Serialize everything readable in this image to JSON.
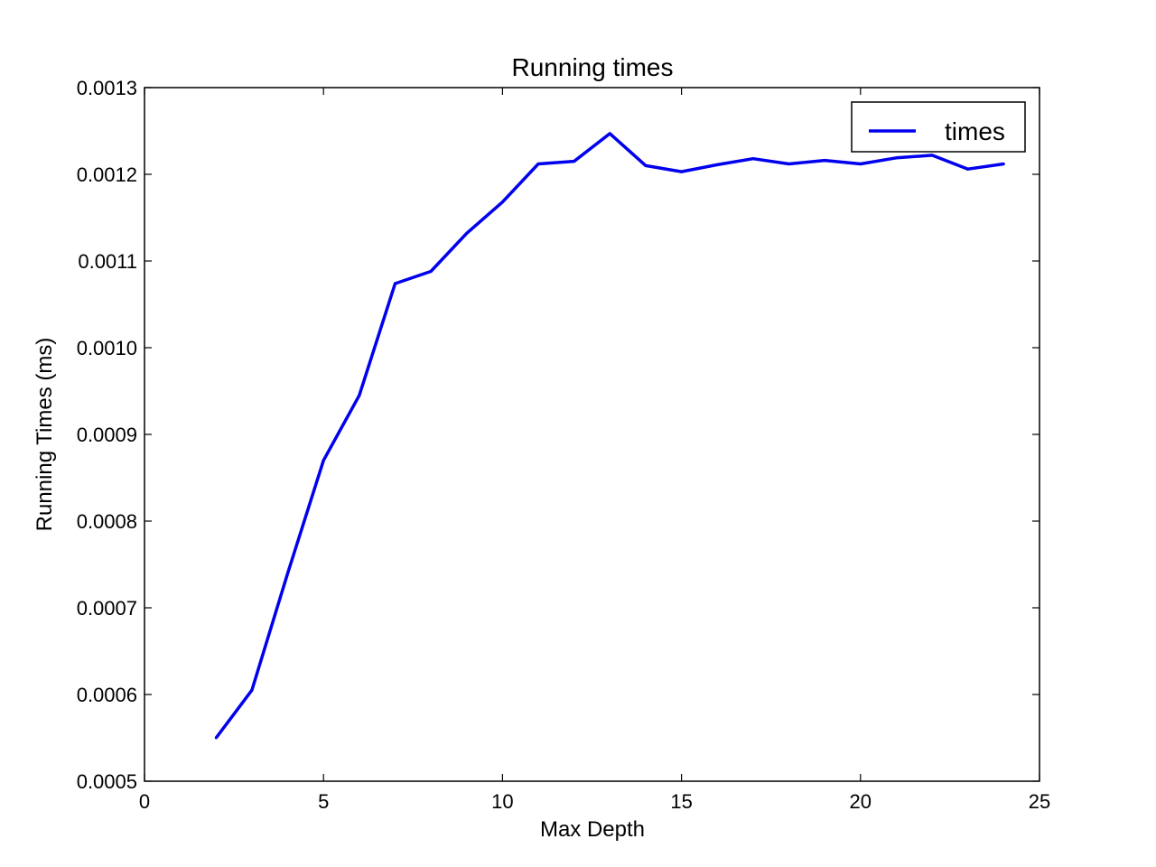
{
  "chart_data": {
    "type": "line",
    "title": "Running times",
    "xlabel": "Max Depth",
    "ylabel": "Running Times (ms)",
    "xlim": [
      0,
      25
    ],
    "ylim": [
      0.0005,
      0.0013
    ],
    "x_ticks": [
      "0",
      "5",
      "10",
      "15",
      "20",
      "25"
    ],
    "y_ticks": [
      "0.0005",
      "0.0006",
      "0.0007",
      "0.0008",
      "0.0009",
      "0.0010",
      "0.0011",
      "0.0012",
      "0.0013"
    ],
    "grid": false,
    "legend_position": "top-right",
    "series": [
      {
        "name": "times",
        "color": "#0000ee",
        "x": [
          2,
          3,
          4,
          5,
          6,
          7,
          8,
          9,
          10,
          11,
          12,
          13,
          14,
          15,
          16,
          17,
          18,
          19,
          20,
          21,
          22,
          23,
          24
        ],
        "values": [
          0.00055,
          0.000605,
          0.00074,
          0.00087,
          0.000945,
          0.001074,
          0.001088,
          0.001132,
          0.001168,
          0.001212,
          0.001215,
          0.001247,
          0.00121,
          0.001203,
          0.001211,
          0.001218,
          0.001212,
          0.001216,
          0.001212,
          0.001219,
          0.001222,
          0.001206,
          0.001212
        ]
      }
    ]
  }
}
